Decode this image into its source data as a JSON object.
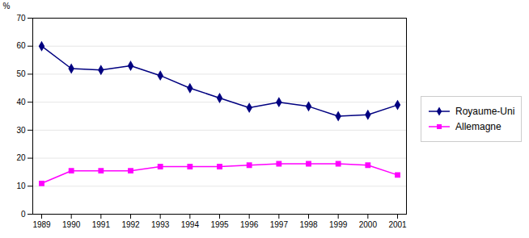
{
  "chart_data": {
    "type": "line",
    "x": [
      1989,
      1990,
      1991,
      1992,
      1993,
      1994,
      1995,
      1996,
      1997,
      1998,
      1999,
      2000,
      2001
    ],
    "xlim": [
      1988.7,
      2001.3
    ],
    "xticks": [
      1989,
      1990,
      1991,
      1992,
      1993,
      1994,
      1995,
      1996,
      1997,
      1998,
      1999,
      2000,
      2001
    ],
    "ylabel": "%",
    "ylim": [
      0,
      70
    ],
    "yticks": [
      0,
      10,
      20,
      30,
      40,
      50,
      60,
      70
    ],
    "grid": true,
    "legend": "right",
    "series": [
      {
        "name": "Royaume-Uni",
        "color": "#000080",
        "marker": "diamond",
        "values": [
          60,
          52,
          51.5,
          53,
          49.5,
          45,
          41.5,
          38,
          40,
          38.5,
          35,
          35.5,
          39
        ]
      },
      {
        "name": "Allemagne",
        "color": "#FF00FF",
        "marker": "square",
        "values": [
          11,
          15.5,
          15.5,
          15.5,
          17,
          17,
          17,
          17.5,
          18,
          18,
          18,
          17.5,
          14
        ]
      }
    ]
  }
}
